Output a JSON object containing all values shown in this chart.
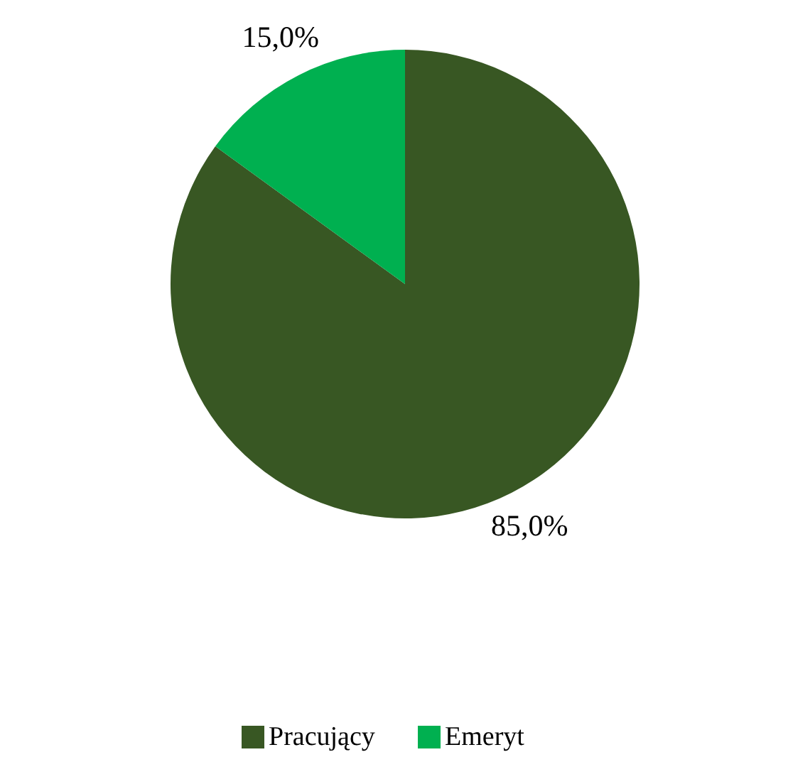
{
  "chart_data": {
    "type": "pie",
    "categories": [
      "Pracujący",
      "Emeryt"
    ],
    "values": [
      85,
      15
    ],
    "colors": [
      "#385723",
      "#00b050"
    ],
    "value_labels": [
      "85,0%",
      "15,0%"
    ],
    "legend": "bottom"
  }
}
